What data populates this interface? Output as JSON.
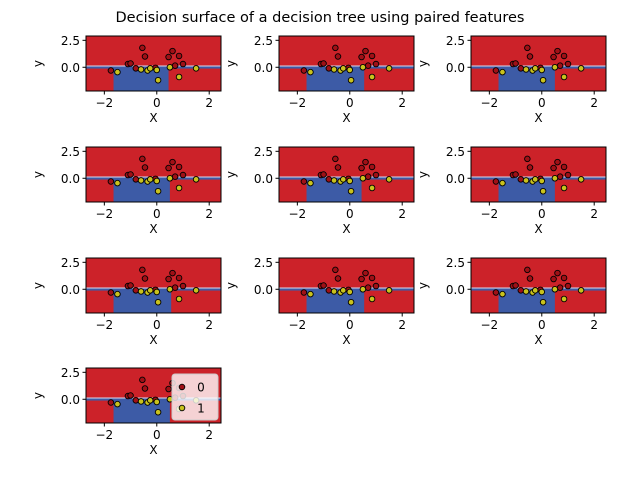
{
  "chart_data": {
    "type": "scatter",
    "title": "Decision surface of a decision tree using paired features",
    "xlabel": "X",
    "ylabel": "y",
    "xlim": [
      -2.7,
      2.45
    ],
    "ylim": [
      -2.2,
      2.9
    ],
    "xticks": [
      -2,
      0,
      2
    ],
    "yticks": [
      2.5,
      0.0
    ],
    "xtick_labels": [
      "−2",
      "0",
      "2"
    ],
    "ytick_labels": [
      "2.5",
      "0.0"
    ],
    "class_colors": {
      "0": "#cc2229",
      "1": "#3d5ba6"
    },
    "point_colors": {
      "0": "#a01016",
      "1": "#c9c21e"
    },
    "legend": {
      "placement": "right",
      "entries": [
        "0",
        "1"
      ]
    },
    "panels": [
      {
        "name": "panel-1",
        "class1_region": {
          "x": [
            -1.65,
            0.45
          ],
          "y": [
            -2.2,
            0.0
          ]
        }
      },
      {
        "name": "panel-2",
        "class1_region": {
          "x": [
            -1.65,
            0.55
          ],
          "y": [
            -2.2,
            0.0
          ]
        }
      },
      {
        "name": "panel-3",
        "class1_region": {
          "x": [
            -1.65,
            0.5
          ],
          "y": [
            -2.2,
            0.0
          ]
        }
      },
      {
        "name": "panel-4",
        "class1_region": {
          "x": [
            -1.65,
            0.5
          ],
          "y": [
            -2.2,
            0.0
          ]
        }
      },
      {
        "name": "panel-5",
        "class1_region": {
          "x": [
            -1.65,
            0.45
          ],
          "y": [
            -2.2,
            0.0
          ]
        }
      },
      {
        "name": "panel-6",
        "class1_region": {
          "x": [
            -1.65,
            0.5
          ],
          "y": [
            -2.2,
            0.0
          ]
        }
      },
      {
        "name": "panel-7",
        "class1_region": {
          "x": [
            -1.65,
            0.55
          ],
          "y": [
            -2.2,
            0.0
          ]
        }
      },
      {
        "name": "panel-8",
        "class1_region": {
          "x": [
            -1.65,
            0.55
          ],
          "y": [
            -2.2,
            0.0
          ]
        }
      },
      {
        "name": "panel-9",
        "class1_region": {
          "x": [
            -1.65,
            0.5
          ],
          "y": [
            -2.2,
            0.0
          ]
        }
      },
      {
        "name": "panel-10",
        "class1_region": {
          "x": [
            -1.65,
            0.5
          ],
          "y": [
            -2.2,
            0.0
          ]
        }
      }
    ],
    "series": [
      {
        "name": "0",
        "x": [
          -1.75,
          -1.1,
          -1.0,
          -0.8,
          -0.55,
          -0.45,
          -0.05,
          0.45,
          0.6,
          0.7,
          0.85,
          1.0
        ],
        "y": [
          -0.3,
          0.3,
          0.35,
          -0.1,
          1.8,
          1.0,
          -0.05,
          0.95,
          1.5,
          0.15,
          1.05,
          0.3
        ]
      },
      {
        "name": "1",
        "x": [
          -1.5,
          -0.6,
          -0.35,
          -0.25,
          0.0,
          0.05,
          0.5,
          0.85,
          1.5
        ],
        "y": [
          -0.45,
          -0.2,
          -0.3,
          -0.1,
          -0.25,
          -1.2,
          0.0,
          -0.9,
          -0.1
        ]
      }
    ]
  }
}
